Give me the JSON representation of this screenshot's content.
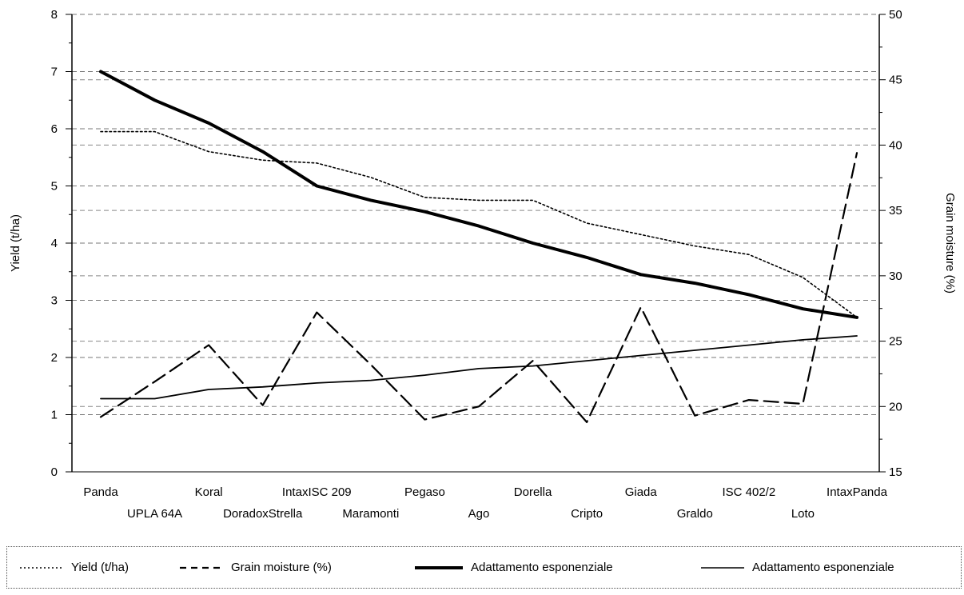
{
  "chart_data": {
    "type": "line",
    "categories": [
      "Panda",
      "UPLA 64A",
      "Koral",
      "DoradoxStrella",
      "IntaxISC 209",
      "Maramonti",
      "Pegaso",
      "Ago",
      "Dorella",
      "Cripto",
      "Giada",
      "Graldo",
      "ISC 402/2",
      "Loto",
      "IntaxPanda"
    ],
    "xlabel": "",
    "y_left": {
      "label": "Yield (t/ha)",
      "lim": [
        0,
        8
      ],
      "ticks": [
        0,
        1,
        2,
        3,
        4,
        5,
        6,
        7,
        8
      ]
    },
    "y_right": {
      "label": "Grain moisture (%)",
      "lim": [
        15,
        50
      ],
      "ticks": [
        15,
        20,
        25,
        30,
        35,
        40,
        45,
        50
      ]
    },
    "grid": true,
    "legend_position": "bottom",
    "series": [
      {
        "name": "Yield (t/ha)",
        "axis": "left",
        "style": "dotted",
        "values": [
          5.95,
          5.95,
          5.6,
          5.45,
          5.4,
          5.15,
          4.8,
          4.75,
          4.75,
          4.35,
          4.15,
          3.95,
          3.8,
          3.4,
          2.7
        ]
      },
      {
        "name": "Grain moisture (%)",
        "axis": "right",
        "style": "dashed",
        "values": [
          19.2,
          21.9,
          24.7,
          20.1,
          27.2,
          23.2,
          19.0,
          20.0,
          23.5,
          18.8,
          27.6,
          19.3,
          20.5,
          20.2,
          39.4
        ]
      },
      {
        "name": "Adattamento esponenziale",
        "axis": "left",
        "style": "thick",
        "values": [
          7.0,
          6.5,
          6.1,
          5.6,
          5.0,
          4.75,
          4.55,
          4.3,
          4.0,
          3.75,
          3.45,
          3.3,
          3.1,
          2.85,
          2.7
        ]
      },
      {
        "name": "Adattamento esponenziale",
        "axis": "right",
        "style": "thin",
        "values": [
          20.6,
          20.6,
          21.3,
          21.5,
          21.8,
          22.0,
          22.4,
          22.9,
          23.1,
          23.5,
          23.9,
          24.3,
          24.7,
          25.1,
          25.4
        ]
      }
    ],
    "colors": {
      "lines": "#000000",
      "grid": "#888888"
    }
  },
  "legend": {
    "yield": "Yield (t/ha)",
    "moisture": "Grain moisture (%)",
    "fit_thick": "Adattamento esponenziale",
    "fit_thin": "Adattamento esponenziale"
  }
}
